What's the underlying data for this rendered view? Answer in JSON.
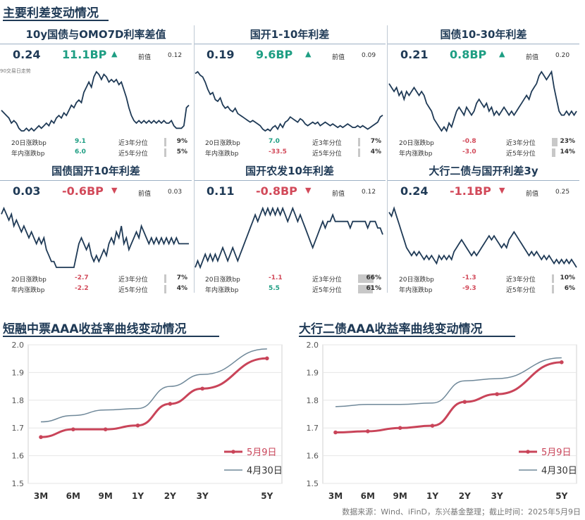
{
  "title": "主要利差变动情况",
  "source": "数据来源：Wind、iFinD，东兴基金整理；截止时间：2025年5月9日",
  "labels": {
    "prev": "前值",
    "d20": "20日涨跌bp",
    "ytd": "年内涨跌bp",
    "p3y": "近3年分位",
    "p5y": "近5年分位",
    "note90": "90交易日走势"
  },
  "colors": {
    "up": "#1e9e83",
    "down": "#d24a5a",
    "line": "#1f3a56",
    "may9": "#c94459",
    "apr30": "#6f8899"
  },
  "panels": [
    {
      "title": "10y国债与OMO7D利率差值",
      "current": "0.24",
      "change": "11.1BP",
      "direction": "up",
      "prev": "0.12",
      "d20": "9.1",
      "d20_dir": "up",
      "ytd": "6.0",
      "ytd_dir": "up",
      "p3y": "9%",
      "p3y_frac": 0.09,
      "p5y": "5%",
      "p5y_frac": 0.05,
      "spark": [
        0.19,
        0.18,
        0.17,
        0.16,
        0.14,
        0.15,
        0.14,
        0.12,
        0.11,
        0.11,
        0.12,
        0.11,
        0.12,
        0.11,
        0.12,
        0.13,
        0.12,
        0.13,
        0.14,
        0.13,
        0.15,
        0.14,
        0.16,
        0.17,
        0.16,
        0.18,
        0.17,
        0.19,
        0.21,
        0.2,
        0.22,
        0.23,
        0.22,
        0.26,
        0.28,
        0.3,
        0.28,
        0.32,
        0.34,
        0.33,
        0.31,
        0.33,
        0.32,
        0.3,
        0.31,
        0.3,
        0.31,
        0.29,
        0.3,
        0.27,
        0.24,
        0.2,
        0.17,
        0.15,
        0.14,
        0.15,
        0.14,
        0.15,
        0.14,
        0.15,
        0.14,
        0.15,
        0.14,
        0.15,
        0.14,
        0.15,
        0.14,
        0.14,
        0.15,
        0.13,
        0.12,
        0.12,
        0.12,
        0.13,
        0.2,
        0.21
      ]
    },
    {
      "title": "国开1-10年利差",
      "current": "0.19",
      "change": "9.6BP",
      "direction": "up",
      "prev": "0.09",
      "d20": "7.0",
      "d20_dir": "up",
      "ytd": "-33.5",
      "ytd_dir": "down",
      "p3y": "7%",
      "p3y_frac": 0.07,
      "p5y": "4%",
      "p5y_frac": 0.04,
      "spark": [
        0.42,
        0.43,
        0.41,
        0.4,
        0.37,
        0.33,
        0.3,
        0.31,
        0.27,
        0.26,
        0.28,
        0.24,
        0.22,
        0.23,
        0.21,
        0.2,
        0.22,
        0.19,
        0.18,
        0.17,
        0.16,
        0.15,
        0.14,
        0.15,
        0.14,
        0.13,
        0.12,
        0.1,
        0.09,
        0.1,
        0.09,
        0.11,
        0.12,
        0.1,
        0.13,
        0.11,
        0.14,
        0.15,
        0.17,
        0.16,
        0.15,
        0.14,
        0.16,
        0.15,
        0.13,
        0.12,
        0.13,
        0.14,
        0.13,
        0.14,
        0.12,
        0.13,
        0.14,
        0.13,
        0.12,
        0.13,
        0.12,
        0.11,
        0.12,
        0.11,
        0.12,
        0.13,
        0.12,
        0.11,
        0.11,
        0.12,
        0.11,
        0.12,
        0.11,
        0.1,
        0.11,
        0.12,
        0.13,
        0.14,
        0.17,
        0.18
      ]
    },
    {
      "title": "国债10-30年利差",
      "current": "0.21",
      "change": "0.8BP",
      "direction": "up",
      "prev": "0.20",
      "d20": "-0.8",
      "d20_dir": "down",
      "ytd": "-3.0",
      "ytd_dir": "down",
      "p3y": "23%",
      "p3y_frac": 0.23,
      "p5y": "14%",
      "p5y_frac": 0.14,
      "spark": [
        0.29,
        0.28,
        0.27,
        0.28,
        0.26,
        0.27,
        0.25,
        0.27,
        0.26,
        0.27,
        0.28,
        0.27,
        0.26,
        0.27,
        0.26,
        0.24,
        0.23,
        0.22,
        0.2,
        0.19,
        0.18,
        0.17,
        0.18,
        0.17,
        0.19,
        0.18,
        0.2,
        0.22,
        0.23,
        0.22,
        0.21,
        0.23,
        0.22,
        0.21,
        0.22,
        0.24,
        0.25,
        0.24,
        0.23,
        0.24,
        0.22,
        0.23,
        0.21,
        0.22,
        0.21,
        0.22,
        0.23,
        0.22,
        0.21,
        0.22,
        0.21,
        0.22,
        0.23,
        0.24,
        0.25,
        0.26,
        0.25,
        0.27,
        0.28,
        0.29,
        0.31,
        0.32,
        0.31,
        0.3,
        0.31,
        0.32,
        0.28,
        0.25,
        0.22,
        0.21,
        0.21,
        0.22,
        0.21,
        0.22,
        0.21,
        0.22
      ]
    },
    {
      "title": "国债国开10年利差",
      "current": "0.03",
      "change": "-0.6BP",
      "direction": "down",
      "prev": "0.03",
      "d20": "-2.7",
      "d20_dir": "down",
      "ytd": "-2.2",
      "ytd_dir": "down",
      "p3y": "7%",
      "p3y_frac": 0.07,
      "p5y": "4%",
      "p5y_frac": 0.04,
      "spark": [
        0.09,
        0.1,
        0.09,
        0.08,
        0.09,
        0.07,
        0.08,
        0.07,
        0.06,
        0.07,
        0.06,
        0.05,
        0.06,
        0.05,
        0.04,
        0.05,
        0.04,
        0.05,
        0.03,
        0.02,
        0.01,
        0.01,
        0.0,
        0.0,
        0.0,
        0.0,
        0.0,
        0.0,
        0.0,
        0.0,
        0.02,
        0.04,
        0.05,
        0.04,
        0.03,
        0.04,
        0.02,
        0.01,
        0.02,
        0.01,
        0.02,
        0.03,
        0.02,
        0.04,
        0.05,
        0.04,
        0.06,
        0.05,
        0.07,
        0.04,
        0.05,
        0.03,
        0.04,
        0.05,
        0.06,
        0.05,
        0.07,
        0.06,
        0.05,
        0.04,
        0.05,
        0.04,
        0.05,
        0.04,
        0.05,
        0.04,
        0.05,
        0.04,
        0.05,
        0.04,
        0.05,
        0.04,
        0.04,
        0.04,
        0.04,
        0.04
      ]
    },
    {
      "title": "国开农发10年利差",
      "current": "0.11",
      "change": "-0.8BP",
      "direction": "down",
      "prev": "0.12",
      "d20": "-1.1",
      "d20_dir": "down",
      "ytd": "5.5",
      "ytd_dir": "up",
      "p3y": "66%",
      "p3y_frac": 0.66,
      "p5y": "61%",
      "p5y_frac": 0.61,
      "spark": [
        0.05,
        0.06,
        0.05,
        0.06,
        0.07,
        0.06,
        0.07,
        0.06,
        0.07,
        0.06,
        0.07,
        0.08,
        0.07,
        0.06,
        0.07,
        0.08,
        0.07,
        0.06,
        0.07,
        0.08,
        0.09,
        0.1,
        0.11,
        0.12,
        0.13,
        0.12,
        0.13,
        0.14,
        0.13,
        0.14,
        0.13,
        0.14,
        0.13,
        0.14,
        0.13,
        0.14,
        0.13,
        0.12,
        0.13,
        0.14,
        0.13,
        0.12,
        0.13,
        0.12,
        0.11,
        0.1,
        0.09,
        0.08,
        0.09,
        0.1,
        0.11,
        0.12,
        0.11,
        0.12,
        0.12,
        0.13,
        0.12,
        0.12,
        0.12,
        0.12,
        0.12,
        0.12,
        0.11,
        0.12,
        0.12,
        0.12,
        0.12,
        0.12,
        0.12,
        0.11,
        0.12,
        0.12,
        0.12,
        0.11,
        0.11,
        0.1
      ]
    },
    {
      "title": "大行二债与国开利差3y",
      "current": "0.24",
      "change": "-1.1BP",
      "direction": "down",
      "prev": "0.25",
      "d20": "-1.3",
      "d20_dir": "down",
      "ytd": "-9.3",
      "ytd_dir": "down",
      "p3y": "10%",
      "p3y_frac": 0.1,
      "p5y": "6%",
      "p5y_frac": 0.06,
      "spark": [
        0.37,
        0.36,
        0.38,
        0.36,
        0.34,
        0.32,
        0.3,
        0.28,
        0.27,
        0.26,
        0.27,
        0.26,
        0.27,
        0.26,
        0.25,
        0.26,
        0.25,
        0.26,
        0.25,
        0.24,
        0.26,
        0.25,
        0.26,
        0.25,
        0.26,
        0.25,
        0.27,
        0.28,
        0.29,
        0.3,
        0.29,
        0.28,
        0.27,
        0.26,
        0.27,
        0.26,
        0.27,
        0.28,
        0.29,
        0.3,
        0.31,
        0.3,
        0.31,
        0.3,
        0.29,
        0.28,
        0.29,
        0.28,
        0.3,
        0.31,
        0.32,
        0.31,
        0.3,
        0.29,
        0.28,
        0.27,
        0.26,
        0.27,
        0.26,
        0.27,
        0.26,
        0.25,
        0.26,
        0.25,
        0.26,
        0.25,
        0.24,
        0.25,
        0.24,
        0.25,
        0.24,
        0.25,
        0.24,
        0.25,
        0.24,
        0.23
      ]
    }
  ],
  "chart_data": [
    {
      "type": "line",
      "title": "短融中票AAA收益率曲线变动情况",
      "categories": [
        "3M",
        "6M",
        "9M",
        "1Y",
        "2Y",
        "3Y",
        "5Y"
      ],
      "x": [
        0.25,
        0.5,
        0.75,
        1,
        2,
        3,
        5
      ],
      "ylim": [
        1.5,
        2.0
      ],
      "yticks": [
        "1.5",
        "1.6",
        "1.7",
        "1.8",
        "1.9",
        "2.0"
      ],
      "legend": "bottom-right",
      "series": [
        {
          "name": "5月9日",
          "values": [
            1.667,
            1.695,
            1.695,
            1.709,
            1.787,
            1.842,
            1.951
          ]
        },
        {
          "name": "4月30日",
          "values": [
            1.722,
            1.745,
            1.765,
            1.77,
            1.85,
            1.893,
            1.985
          ]
        }
      ]
    },
    {
      "type": "line",
      "title": "大行二债AAA收益率曲线变动情况",
      "categories": [
        "3M",
        "6M",
        "9M",
        "1Y",
        "2Y",
        "3Y",
        "5Y"
      ],
      "x": [
        0.25,
        0.5,
        0.75,
        1,
        2,
        3,
        5
      ],
      "ylim": [
        1.5,
        2.0
      ],
      "yticks": [
        "1.5",
        "1.6",
        "1.7",
        "1.8",
        "1.9",
        "2.0"
      ],
      "legend": "bottom-right",
      "series": [
        {
          "name": "5月9日",
          "values": [
            1.684,
            1.688,
            1.7,
            1.708,
            1.794,
            1.822,
            1.937
          ]
        },
        {
          "name": "4月30日",
          "values": [
            1.777,
            1.785,
            1.785,
            1.79,
            1.87,
            1.878,
            1.953
          ]
        }
      ]
    }
  ]
}
